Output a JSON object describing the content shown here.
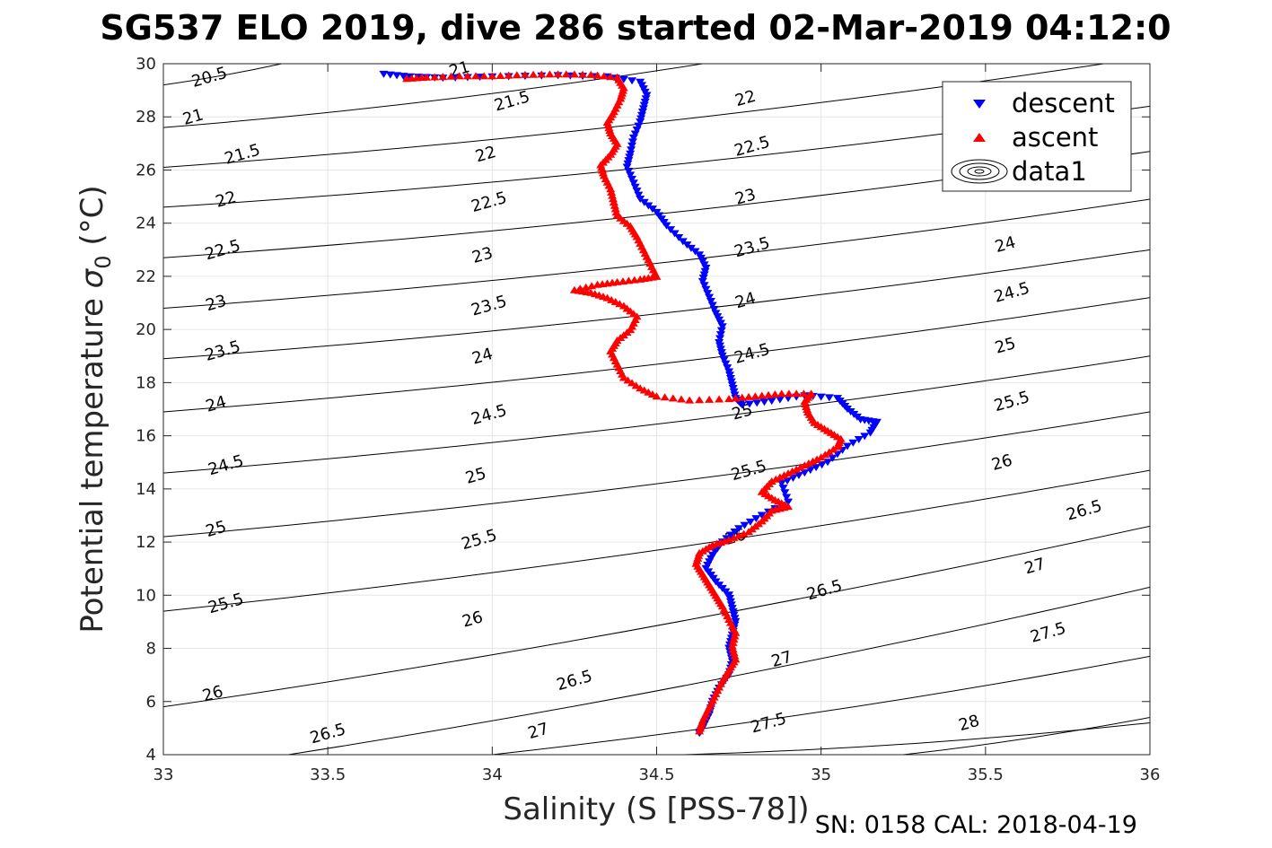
{
  "chart_data": {
    "type": "scatter",
    "title": "SG537 ELO 2019, dive 286 started 02-Mar-2019 04:12:0",
    "xlabel": "Salinity (S [PSS-78])",
    "ylabel": "Potential temperature",
    "ylabel_symbol": "σ",
    "ylabel_subscript": "0",
    "ylabel_unit": "(°C)",
    "footer": "SN: 0158  CAL: 2018-04-19",
    "xlim": [
      33,
      36
    ],
    "ylim": [
      4,
      30
    ],
    "x_ticks": [
      "33",
      "33.5",
      "34",
      "34.5",
      "35",
      "35.5",
      "36"
    ],
    "y_ticks": [
      "4",
      "6",
      "8",
      "10",
      "12",
      "14",
      "16",
      "18",
      "20",
      "22",
      "24",
      "26",
      "28",
      "30"
    ],
    "grid": true,
    "legend": {
      "position": "top-right",
      "entries": [
        {
          "label": "descent",
          "marker": "triangle-down",
          "color": "#0000ff"
        },
        {
          "label": "ascent",
          "marker": "triangle-up",
          "color": "#ff0000"
        },
        {
          "label": "data1",
          "marker": "contour"
        }
      ]
    },
    "series": [
      {
        "name": "descent",
        "marker": "triangle-down",
        "color": "#0000ff",
        "points": [
          [
            33.67,
            29.6
          ],
          [
            33.75,
            29.5
          ],
          [
            33.85,
            29.45
          ],
          [
            34.0,
            29.5
          ],
          [
            34.2,
            29.55
          ],
          [
            34.35,
            29.5
          ],
          [
            34.45,
            29.3
          ],
          [
            34.47,
            28.8
          ],
          [
            34.46,
            28.3
          ],
          [
            34.45,
            27.8
          ],
          [
            34.43,
            27.2
          ],
          [
            34.42,
            26.6
          ],
          [
            34.41,
            26.1
          ],
          [
            34.43,
            25.5
          ],
          [
            34.45,
            24.9
          ],
          [
            34.5,
            24.4
          ],
          [
            34.53,
            23.9
          ],
          [
            34.58,
            23.3
          ],
          [
            34.63,
            22.8
          ],
          [
            34.65,
            22.3
          ],
          [
            34.64,
            21.8
          ],
          [
            34.66,
            21.2
          ],
          [
            34.68,
            20.6
          ],
          [
            34.7,
            20.1
          ],
          [
            34.69,
            19.5
          ],
          [
            34.7,
            19.0
          ],
          [
            34.72,
            18.4
          ],
          [
            34.73,
            17.9
          ],
          [
            34.74,
            17.4
          ],
          [
            34.76,
            17.15
          ],
          [
            34.85,
            17.3
          ],
          [
            34.95,
            17.5
          ],
          [
            35.05,
            17.4
          ],
          [
            35.08,
            17.0
          ],
          [
            35.12,
            16.6
          ],
          [
            35.17,
            16.5
          ],
          [
            35.15,
            16.1
          ],
          [
            35.08,
            15.6
          ],
          [
            35.02,
            15.0
          ],
          [
            34.95,
            14.6
          ],
          [
            34.88,
            14.2
          ],
          [
            34.9,
            13.5
          ],
          [
            34.82,
            13.0
          ],
          [
            34.75,
            12.5
          ],
          [
            34.7,
            12.0
          ],
          [
            34.67,
            11.5
          ],
          [
            34.65,
            11.0
          ],
          [
            34.68,
            10.5
          ],
          [
            34.72,
            10.0
          ],
          [
            34.73,
            9.5
          ],
          [
            34.74,
            9.0
          ],
          [
            34.73,
            8.5
          ],
          [
            34.72,
            8.0
          ],
          [
            34.73,
            7.5
          ],
          [
            34.72,
            7.0
          ],
          [
            34.69,
            6.5
          ],
          [
            34.67,
            6.0
          ],
          [
            34.66,
            5.5
          ],
          [
            34.64,
            5.0
          ],
          [
            34.63,
            4.8
          ]
        ]
      },
      {
        "name": "ascent",
        "marker": "triangle-up",
        "color": "#ff0000",
        "points": [
          [
            34.63,
            4.9
          ],
          [
            34.64,
            5.3
          ],
          [
            34.66,
            5.8
          ],
          [
            34.68,
            6.3
          ],
          [
            34.7,
            6.8
          ],
          [
            34.72,
            7.2
          ],
          [
            34.74,
            7.6
          ],
          [
            34.73,
            8.1
          ],
          [
            34.74,
            8.6
          ],
          [
            34.72,
            9.1
          ],
          [
            34.7,
            9.6
          ],
          [
            34.68,
            10.0
          ],
          [
            34.66,
            10.4
          ],
          [
            34.64,
            10.8
          ],
          [
            34.62,
            11.2
          ],
          [
            34.63,
            11.6
          ],
          [
            34.67,
            11.9
          ],
          [
            34.72,
            12.1
          ],
          [
            34.78,
            12.4
          ],
          [
            34.82,
            12.8
          ],
          [
            34.85,
            13.2
          ],
          [
            34.9,
            13.35
          ],
          [
            34.86,
            13.6
          ],
          [
            34.82,
            13.9
          ],
          [
            34.85,
            14.3
          ],
          [
            34.9,
            14.6
          ],
          [
            34.95,
            14.9
          ],
          [
            35.0,
            15.2
          ],
          [
            35.05,
            15.6
          ],
          [
            35.06,
            15.9
          ],
          [
            35.02,
            16.2
          ],
          [
            34.98,
            16.5
          ],
          [
            34.96,
            16.9
          ],
          [
            34.95,
            17.3
          ],
          [
            34.97,
            17.6
          ],
          [
            34.88,
            17.6
          ],
          [
            34.8,
            17.5
          ],
          [
            34.72,
            17.4
          ],
          [
            34.6,
            17.35
          ],
          [
            34.5,
            17.5
          ],
          [
            34.45,
            17.8
          ],
          [
            34.4,
            18.2
          ],
          [
            34.38,
            18.7
          ],
          [
            34.36,
            19.2
          ],
          [
            34.38,
            19.6
          ],
          [
            34.42,
            20.0
          ],
          [
            34.44,
            20.5
          ],
          [
            34.4,
            20.9
          ],
          [
            34.35,
            21.2
          ],
          [
            34.3,
            21.4
          ],
          [
            34.25,
            21.5
          ],
          [
            34.32,
            21.7
          ],
          [
            34.38,
            21.8
          ],
          [
            34.45,
            21.9
          ],
          [
            34.5,
            22.0
          ],
          [
            34.48,
            22.5
          ],
          [
            34.46,
            23.0
          ],
          [
            34.44,
            23.5
          ],
          [
            34.42,
            23.9
          ],
          [
            34.38,
            24.3
          ],
          [
            34.37,
            24.8
          ],
          [
            34.36,
            25.3
          ],
          [
            34.34,
            25.8
          ],
          [
            34.33,
            26.2
          ],
          [
            34.36,
            26.6
          ],
          [
            34.38,
            27.0
          ],
          [
            34.36,
            27.4
          ],
          [
            34.35,
            27.8
          ],
          [
            34.37,
            28.2
          ],
          [
            34.39,
            28.7
          ],
          [
            34.4,
            29.1
          ],
          [
            34.38,
            29.5
          ],
          [
            34.3,
            29.6
          ],
          [
            34.2,
            29.62
          ],
          [
            34.1,
            29.6
          ],
          [
            34.0,
            29.55
          ],
          [
            33.9,
            29.55
          ],
          [
            33.8,
            29.5
          ],
          [
            33.74,
            29.45
          ]
        ]
      }
    ],
    "contour_levels": [
      {
        "label": "20.5",
        "x0": 33.0,
        "y0": 29.2,
        "x1": 33.36,
        "y1": 30.0
      },
      {
        "label": "21",
        "x0": 33.0,
        "y0": 27.6,
        "x1": 34.64,
        "y1": 30.0
      },
      {
        "label": "21.5",
        "x0": 33.0,
        "y0": 26.1,
        "x1": 35.86,
        "y1": 30.0
      },
      {
        "label": "22",
        "x0": 33.0,
        "y0": 24.6,
        "x1": 36.0,
        "y1": 28.4
      },
      {
        "label": "22.5",
        "x0": 33.0,
        "y0": 22.7,
        "x1": 36.0,
        "y1": 26.7
      },
      {
        "label": "23",
        "x0": 33.0,
        "y0": 20.8,
        "x1": 36.0,
        "y1": 24.9
      },
      {
        "label": "23.5",
        "x0": 33.0,
        "y0": 18.9,
        "x1": 36.0,
        "y1": 23.0
      },
      {
        "label": "24",
        "x0": 33.0,
        "y0": 16.9,
        "x1": 36.0,
        "y1": 21.2
      },
      {
        "label": "24.5",
        "x0": 33.0,
        "y0": 14.6,
        "x1": 36.0,
        "y1": 19.0
      },
      {
        "label": "25",
        "x0": 33.0,
        "y0": 12.2,
        "x1": 36.0,
        "y1": 16.9
      },
      {
        "label": "25.5",
        "x0": 33.0,
        "y0": 9.4,
        "x1": 36.0,
        "y1": 14.7
      },
      {
        "label": "26",
        "x0": 33.0,
        "y0": 5.8,
        "x1": 36.0,
        "y1": 12.6
      },
      {
        "label": "26.5",
        "x0": 33.38,
        "y0": 4.0,
        "x1": 36.0,
        "y1": 10.3
      },
      {
        "label": "27",
        "x0": 34.0,
        "y0": 4.0,
        "x1": 36.0,
        "y1": 7.7
      },
      {
        "label": "27.5",
        "x0": 34.58,
        "y0": 4.0,
        "x1": 36.0,
        "y1": 5.2
      },
      {
        "label": "28",
        "x0": 35.25,
        "y0": 4.0,
        "x1": 36.0,
        "y1": 5.4
      }
    ],
    "contour_label_positions": [
      {
        "label": "20.5",
        "x": 33.14,
        "y": 29.5
      },
      {
        "label": "21",
        "x": 33.09,
        "y": 28.0
      },
      {
        "label": "21.5",
        "x": 33.24,
        "y": 26.6
      },
      {
        "label": "22",
        "x": 33.19,
        "y": 24.9
      },
      {
        "label": "22.5",
        "x": 33.18,
        "y": 23.0
      },
      {
        "label": "23",
        "x": 33.16,
        "y": 21.0
      },
      {
        "label": "23.5",
        "x": 33.18,
        "y": 19.2
      },
      {
        "label": "24",
        "x": 33.16,
        "y": 17.2
      },
      {
        "label": "24.5",
        "x": 33.19,
        "y": 14.9
      },
      {
        "label": "25",
        "x": 33.16,
        "y": 12.5
      },
      {
        "label": "25.5",
        "x": 33.19,
        "y": 9.7
      },
      {
        "label": "26",
        "x": 33.15,
        "y": 6.3
      },
      {
        "label": "26.5",
        "x": 33.5,
        "y": 4.8
      },
      {
        "label": "21",
        "x": 33.9,
        "y": 29.8
      },
      {
        "label": "21.5",
        "x": 34.06,
        "y": 28.6
      },
      {
        "label": "22",
        "x": 33.98,
        "y": 26.6
      },
      {
        "label": "22.5",
        "x": 33.99,
        "y": 24.8
      },
      {
        "label": "23",
        "x": 33.97,
        "y": 22.8
      },
      {
        "label": "23.5",
        "x": 33.99,
        "y": 20.9
      },
      {
        "label": "24",
        "x": 33.97,
        "y": 19.0
      },
      {
        "label": "24.5",
        "x": 33.99,
        "y": 16.8
      },
      {
        "label": "25",
        "x": 33.95,
        "y": 14.5
      },
      {
        "label": "25.5",
        "x": 33.96,
        "y": 12.1
      },
      {
        "label": "26",
        "x": 33.94,
        "y": 9.1
      },
      {
        "label": "26.5",
        "x": 34.25,
        "y": 6.8
      },
      {
        "label": "27",
        "x": 34.14,
        "y": 4.9
      },
      {
        "label": "22",
        "x": 34.77,
        "y": 28.7
      },
      {
        "label": "22.5",
        "x": 34.79,
        "y": 26.9
      },
      {
        "label": "23",
        "x": 34.77,
        "y": 25.0
      },
      {
        "label": "23.5",
        "x": 34.79,
        "y": 23.1
      },
      {
        "label": "24",
        "x": 34.77,
        "y": 21.1
      },
      {
        "label": "24.5",
        "x": 34.79,
        "y": 19.1
      },
      {
        "label": "25",
        "x": 34.76,
        "y": 16.9
      },
      {
        "label": "25.5",
        "x": 34.78,
        "y": 14.7
      },
      {
        "label": "26",
        "x": 34.74,
        "y": 12.2
      },
      {
        "label": "26.5",
        "x": 35.01,
        "y": 10.2
      },
      {
        "label": "27",
        "x": 34.88,
        "y": 7.6
      },
      {
        "label": "27.5",
        "x": 34.84,
        "y": 5.2
      },
      {
        "label": "24",
        "x": 35.56,
        "y": 23.2
      },
      {
        "label": "24.5",
        "x": 35.58,
        "y": 21.4
      },
      {
        "label": "25",
        "x": 35.56,
        "y": 19.4
      },
      {
        "label": "25.5",
        "x": 35.58,
        "y": 17.3
      },
      {
        "label": "26",
        "x": 35.55,
        "y": 15.0
      },
      {
        "label": "26.5",
        "x": 35.8,
        "y": 13.2
      },
      {
        "label": "27",
        "x": 35.65,
        "y": 11.1
      },
      {
        "label": "27.5",
        "x": 35.69,
        "y": 8.6
      },
      {
        "label": "28",
        "x": 35.45,
        "y": 5.2
      }
    ]
  }
}
